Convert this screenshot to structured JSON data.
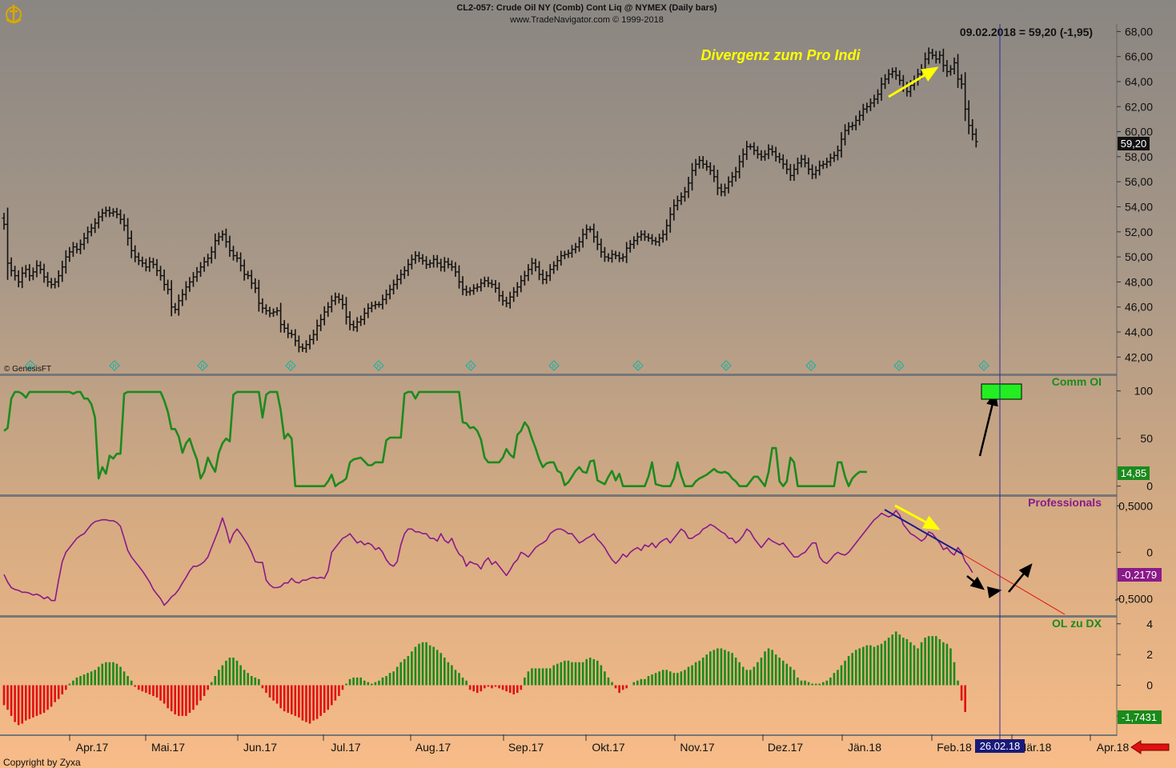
{
  "header": {
    "title": "CL2-057:  Crude Oil NY (Comb) Cont Liq @ NYMEX  (Daily bars)",
    "subtitle": "www.TradeNavigator.com © 1999-2018",
    "readout": "09.02.2018 = 59,20 (-1,95)",
    "watermark": "© GenesisFT",
    "copyright": "Copyright by Zyxa",
    "cursor_date": "26.02.18"
  },
  "colors": {
    "price_bar": "#111111",
    "comm_oi": "#1d8a1d",
    "professionals": "#8a1a8a",
    "histogram_positive": "#1a8a1a",
    "histogram_negative": "#e01010",
    "cursor_line": "#2a2aa0",
    "annotation_yellow": "#ffff00",
    "green_box": "#22ee22",
    "red_arrow": "#e01010"
  },
  "chart_data": [
    {
      "type": "ohlc",
      "panel": "price",
      "annotation": "Divergenz zum Pro Indi",
      "last_value_label": "59,20",
      "y_ticks": [
        "68,00",
        "66,00",
        "64,00",
        "62,00",
        "60,00",
        "58,00",
        "56,00",
        "54,00",
        "52,00",
        "50,00",
        "48,00",
        "46,00",
        "44,00",
        "42,00"
      ],
      "ylim": [
        41.0,
        68.6
      ],
      "x_ticks": [
        "Apr.17",
        "Mai.17",
        "Jun.17",
        "Jul.17",
        "Aug.17",
        "Sep.17",
        "Okt.17",
        "Nov.17",
        "Dez.17",
        "Jän.18",
        "Feb.18",
        "Mär.18",
        "Apr.18"
      ],
      "closes": [
        52.6,
        49.5,
        48.9,
        48.5,
        48.0,
        48.7,
        49.0,
        48.5,
        48.8,
        49.3,
        49.0,
        48.4,
        48.0,
        47.8,
        48.0,
        48.5,
        49.2,
        50.0,
        50.4,
        50.8,
        50.6,
        51.0,
        51.5,
        52.0,
        52.3,
        52.7,
        53.2,
        53.5,
        53.7,
        53.5,
        53.6,
        53.4,
        53.0,
        52.5,
        51.5,
        50.5,
        50.0,
        49.7,
        49.5,
        49.2,
        49.6,
        49.4,
        48.9,
        48.5,
        47.8,
        47.4,
        46.0,
        45.8,
        46.5,
        47.0,
        47.6,
        48.0,
        48.4,
        48.8,
        49.2,
        49.6,
        49.9,
        50.4,
        51.3,
        51.6,
        51.8,
        51.2,
        50.5,
        50.1,
        49.9,
        49.3,
        48.6,
        48.5,
        47.9,
        47.5,
        46.3,
        45.9,
        45.7,
        45.5,
        45.6,
        45.7,
        44.6,
        44.3,
        43.9,
        43.8,
        43.3,
        42.8,
        42.7,
        43.0,
        43.4,
        43.8,
        44.5,
        45.0,
        45.6,
        46.0,
        46.5,
        46.8,
        46.6,
        46.2,
        45.2,
        44.6,
        44.4,
        44.8,
        45.0,
        45.5,
        45.9,
        46.1,
        46.2,
        46.2,
        46.6,
        47.0,
        47.4,
        47.8,
        48.2,
        48.6,
        48.9,
        49.4,
        49.8,
        50.1,
        49.9,
        49.7,
        49.4,
        49.5,
        49.8,
        49.5,
        49.2,
        49.6,
        49.4,
        49.2,
        48.8,
        48.0,
        47.4,
        47.2,
        47.3,
        47.5,
        47.6,
        47.9,
        48.1,
        47.9,
        47.8,
        47.5,
        46.9,
        46.5,
        46.3,
        46.8,
        47.2,
        47.6,
        48.1,
        48.5,
        49.0,
        49.5,
        49.2,
        48.6,
        48.2,
        48.5,
        49.0,
        49.3,
        49.7,
        50.1,
        50.2,
        50.3,
        50.6,
        50.8,
        51.2,
        51.8,
        52.2,
        52.2,
        51.6,
        51.0,
        50.4,
        50.0,
        49.9,
        50.2,
        50.1,
        49.9,
        50.0,
        50.7,
        51.0,
        51.3,
        51.6,
        51.8,
        51.6,
        51.5,
        51.3,
        51.2,
        51.5,
        51.8,
        52.5,
        53.4,
        54.1,
        54.5,
        54.8,
        55.2,
        55.9,
        56.9,
        57.4,
        57.7,
        57.4,
        57.2,
        56.9,
        56.4,
        55.5,
        55.2,
        55.5,
        56.0,
        56.4,
        56.8,
        57.6,
        58.2,
        58.8,
        58.8,
        58.5,
        58.2,
        58.0,
        58.2,
        58.6,
        58.4,
        58.0,
        57.8,
        57.4,
        57.0,
        56.5,
        57.0,
        57.5,
        57.8,
        57.5,
        57.0,
        56.6,
        56.9,
        57.3,
        57.4,
        57.6,
        57.9,
        58.1,
        58.5,
        59.4,
        60.1,
        60.4,
        60.5,
        60.9,
        61.3,
        61.8,
        62.0,
        62.3,
        62.6,
        63.0,
        63.8,
        64.2,
        64.6,
        64.8,
        64.5,
        64.1,
        63.6,
        63.2,
        63.7,
        64.1,
        64.6,
        65.0,
        65.8,
        66.3,
        66.1,
        65.8,
        66.1,
        65.3,
        64.8,
        65.0,
        65.5,
        64.2,
        63.8,
        61.8,
        60.5,
        59.8,
        59.2
      ]
    },
    {
      "type": "line",
      "panel": "Comm OI",
      "title": "Comm OI",
      "last_value_label": "14,85",
      "y_ticks": [
        "100",
        "50",
        "0"
      ],
      "ylim": [
        -7,
        114
      ],
      "series_values": [
        58,
        61,
        92,
        99,
        99,
        97,
        93,
        99,
        99,
        99,
        99,
        99,
        99,
        99,
        99,
        99,
        99,
        99,
        99,
        97,
        99,
        99,
        92,
        92,
        86,
        72,
        8,
        20,
        13,
        32,
        29,
        34,
        34,
        97,
        99,
        99,
        99,
        99,
        99,
        99,
        99,
        99,
        99,
        99,
        90,
        78,
        60,
        60,
        52,
        35,
        45,
        50,
        38,
        28,
        8,
        15,
        30,
        22,
        15,
        35,
        45,
        50,
        47,
        96,
        99,
        99,
        99,
        99,
        99,
        99,
        99,
        72,
        96,
        99,
        99,
        99,
        80,
        50,
        55,
        50,
        0,
        0,
        0,
        0,
        0,
        0,
        0,
        0,
        0,
        5,
        12,
        0,
        3,
        5,
        8,
        25,
        28,
        29,
        30,
        26,
        22,
        22,
        25,
        25,
        25,
        48,
        51,
        51,
        51,
        51,
        97,
        99,
        99,
        92,
        99,
        99,
        99,
        99,
        99,
        99,
        99,
        99,
        99,
        99,
        99,
        99,
        67,
        66,
        61,
        62,
        58,
        49,
        30,
        25,
        25,
        25,
        25,
        30,
        39,
        33,
        30,
        54,
        58,
        67,
        62,
        50,
        40,
        28,
        20,
        24,
        25,
        25,
        16,
        14,
        1,
        4,
        10,
        16,
        20,
        15,
        14,
        26,
        27,
        6,
        4,
        2,
        10,
        16,
        6,
        13,
        0,
        0,
        0,
        0,
        0,
        0,
        0,
        10,
        25,
        2,
        1,
        0,
        0,
        0,
        8,
        25,
        11,
        0,
        0,
        0,
        5,
        8,
        10,
        12,
        15,
        18,
        15,
        14,
        15,
        13,
        8,
        5,
        0,
        0,
        0,
        5,
        10,
        10,
        5,
        0,
        15,
        40,
        40,
        5,
        0,
        5,
        30,
        25,
        0,
        0,
        0,
        0,
        0,
        0,
        0,
        0,
        0,
        0,
        0,
        25,
        25,
        10,
        0,
        8,
        12,
        15,
        15,
        14.85
      ]
    },
    {
      "type": "line",
      "panel": "Professionals",
      "title": "Professionals",
      "last_value_label": "-0,2179",
      "y_ticks": [
        "0,5000",
        "0",
        "-0,5000"
      ],
      "ylim": [
        -0.66,
        0.58
      ],
      "series_values": [
        -0.24,
        -0.32,
        -0.38,
        -0.4,
        -0.41,
        -0.43,
        -0.43,
        -0.44,
        -0.46,
        -0.45,
        -0.47,
        -0.5,
        -0.48,
        -0.52,
        -0.52,
        -0.3,
        -0.1,
        0.0,
        0.05,
        0.1,
        0.15,
        0.18,
        0.2,
        0.25,
        0.3,
        0.33,
        0.34,
        0.35,
        0.35,
        0.34,
        0.34,
        0.32,
        0.28,
        0.15,
        0.02,
        -0.05,
        -0.1,
        -0.15,
        -0.2,
        -0.26,
        -0.32,
        -0.4,
        -0.45,
        -0.5,
        -0.57,
        -0.53,
        -0.48,
        -0.45,
        -0.4,
        -0.33,
        -0.27,
        -0.2,
        -0.15,
        -0.15,
        -0.13,
        -0.1,
        -0.05,
        0.05,
        0.15,
        0.25,
        0.37,
        0.25,
        0.1,
        0.2,
        0.25,
        0.2,
        0.14,
        0.08,
        0.0,
        -0.1,
        -0.11,
        -0.11,
        -0.3,
        -0.35,
        -0.38,
        -0.38,
        -0.37,
        -0.33,
        -0.33,
        -0.28,
        -0.32,
        -0.33,
        -0.3,
        -0.3,
        -0.28,
        -0.27,
        -0.28,
        -0.27,
        -0.28,
        -0.2,
        0.0,
        0.05,
        0.1,
        0.15,
        0.17,
        0.2,
        0.15,
        0.1,
        0.12,
        0.08,
        0.1,
        0.08,
        0.03,
        0.05,
        0.0,
        -0.08,
        -0.13,
        -0.15,
        -0.1,
        0.08,
        0.2,
        0.25,
        0.25,
        0.22,
        0.22,
        0.2,
        0.2,
        0.15,
        0.15,
        0.12,
        0.2,
        0.13,
        0.1,
        0.15,
        0.05,
        -0.02,
        -0.05,
        -0.15,
        -0.1,
        -0.12,
        -0.13,
        -0.18,
        -0.1,
        -0.06,
        -0.13,
        -0.1,
        -0.15,
        -0.2,
        -0.25,
        -0.19,
        -0.12,
        -0.08,
        0.0,
        -0.02,
        -0.05,
        0.0,
        0.05,
        0.08,
        0.1,
        0.13,
        0.2,
        0.23,
        0.25,
        0.25,
        0.23,
        0.2,
        0.2,
        0.15,
        0.1,
        0.12,
        0.15,
        0.17,
        0.2,
        0.14,
        0.1,
        0.05,
        -0.02,
        -0.08,
        -0.12,
        -0.08,
        -0.02,
        -0.05,
        0.0,
        0.03,
        0.05,
        0.02,
        0.08,
        0.06,
        0.1,
        0.05,
        0.1,
        0.13,
        0.15,
        0.1,
        0.15,
        0.2,
        0.25,
        0.22,
        0.15,
        0.15,
        0.18,
        0.2,
        0.25,
        0.27,
        0.3,
        0.28,
        0.25,
        0.22,
        0.2,
        0.15,
        0.15,
        0.1,
        0.13,
        0.18,
        0.25,
        0.22,
        0.15,
        0.1,
        0.05,
        0.1,
        0.15,
        0.12,
        0.1,
        0.08,
        0.1,
        0.05,
        0.0,
        -0.05,
        -0.05,
        -0.02,
        0.0,
        0.05,
        0.1,
        0.1,
        -0.05,
        -0.1,
        -0.12,
        -0.08,
        -0.03,
        0.0,
        -0.02,
        -0.03,
        0.0,
        0.05,
        0.1,
        0.15,
        0.2,
        0.25,
        0.3,
        0.35,
        0.38,
        0.42,
        0.4,
        0.38,
        0.4,
        0.45,
        0.4,
        0.3,
        0.25,
        0.2,
        0.18,
        0.15,
        0.12,
        0.15,
        0.22,
        0.2,
        0.15,
        0.1,
        0.03,
        0.05,
        0.0,
        -0.03,
        0.05,
        0.0,
        -0.1,
        -0.15,
        -0.2179
      ]
    },
    {
      "type": "bar",
      "panel": "OL zu DX",
      "title": "OL zu DX",
      "last_value_label": "-1,7431",
      "y_ticks": [
        "4",
        "2",
        "0",
        "-2"
      ],
      "ylim": [
        -3.1,
        4.3
      ],
      "series_values": [
        -1.3,
        -1.6,
        -2.0,
        -2.4,
        -2.6,
        -2.5,
        -2.3,
        -2.2,
        -2.1,
        -2.0,
        -1.9,
        -1.8,
        -1.6,
        -1.4,
        -1.1,
        -0.9,
        -0.6,
        -0.3,
        0.1,
        0.3,
        0.5,
        0.6,
        0.7,
        0.8,
        0.9,
        1.0,
        1.2,
        1.4,
        1.5,
        1.5,
        1.5,
        1.4,
        1.2,
        0.9,
        0.6,
        0.3,
        -0.1,
        -0.3,
        -0.4,
        -0.5,
        -0.6,
        -0.7,
        -0.8,
        -1.0,
        -1.2,
        -1.5,
        -1.7,
        -1.9,
        -2.0,
        -2.0,
        -2.0,
        -1.8,
        -1.6,
        -1.3,
        -1.0,
        -0.7,
        -0.3,
        0.2,
        0.6,
        1.0,
        1.3,
        1.6,
        1.8,
        1.8,
        1.6,
        1.3,
        1.0,
        0.8,
        0.6,
        0.5,
        0.4,
        -0.2,
        -0.5,
        -0.8,
        -1.0,
        -1.2,
        -1.5,
        -1.7,
        -1.8,
        -1.9,
        -2.0,
        -2.1,
        -2.3,
        -2.4,
        -2.5,
        -2.3,
        -2.2,
        -2.0,
        -1.8,
        -1.6,
        -1.3,
        -1.0,
        -0.7,
        -0.3,
        0.1,
        0.4,
        0.5,
        0.5,
        0.5,
        0.3,
        0.2,
        0.1,
        0.2,
        0.3,
        0.5,
        0.6,
        0.8,
        0.9,
        1.2,
        1.5,
        1.7,
        1.9,
        2.2,
        2.5,
        2.7,
        2.8,
        2.8,
        2.6,
        2.5,
        2.3,
        2.1,
        1.8,
        1.5,
        1.3,
        1.0,
        0.8,
        0.5,
        0.3,
        -0.3,
        -0.4,
        -0.5,
        -0.4,
        -0.2,
        -0.1,
        -0.2,
        -0.1,
        -0.2,
        -0.3,
        -0.4,
        -0.5,
        -0.6,
        -0.5,
        -0.3,
        0.5,
        0.9,
        1.1,
        1.1,
        1.1,
        1.1,
        1.1,
        1.1,
        1.3,
        1.4,
        1.5,
        1.6,
        1.6,
        1.5,
        1.5,
        1.5,
        1.5,
        1.7,
        1.8,
        1.7,
        1.6,
        1.3,
        0.9,
        0.5,
        0.2,
        -0.2,
        -0.5,
        -0.3,
        -0.2,
        0.0,
        0.2,
        0.3,
        0.4,
        0.4,
        0.6,
        0.7,
        0.8,
        0.9,
        1.0,
        1.0,
        0.9,
        0.8,
        0.8,
        0.9,
        1.0,
        1.2,
        1.3,
        1.5,
        1.6,
        1.8,
        2.0,
        2.2,
        2.3,
        2.4,
        2.4,
        2.3,
        2.2,
        2.1,
        1.8,
        1.5,
        1.2,
        1.0,
        1.0,
        1.2,
        1.5,
        1.8,
        2.2,
        2.4,
        2.3,
        2.0,
        1.8,
        1.6,
        1.4,
        1.2,
        1.0,
        0.5,
        0.3,
        0.3,
        0.2,
        0.1,
        0.1,
        0.1,
        0.2,
        0.3,
        0.5,
        0.8,
        1.0,
        1.3,
        1.6,
        1.9,
        2.1,
        2.3,
        2.4,
        2.5,
        2.6,
        2.6,
        2.5,
        2.6,
        2.7,
        2.9,
        3.1,
        3.3,
        3.5,
        3.3,
        3.1,
        3.0,
        2.8,
        2.6,
        2.4,
        2.8,
        3.1,
        3.2,
        3.2,
        3.2,
        3.0,
        2.8,
        2.7,
        2.4,
        1.5,
        0.3,
        -1.0,
        -1.7431
      ]
    }
  ]
}
